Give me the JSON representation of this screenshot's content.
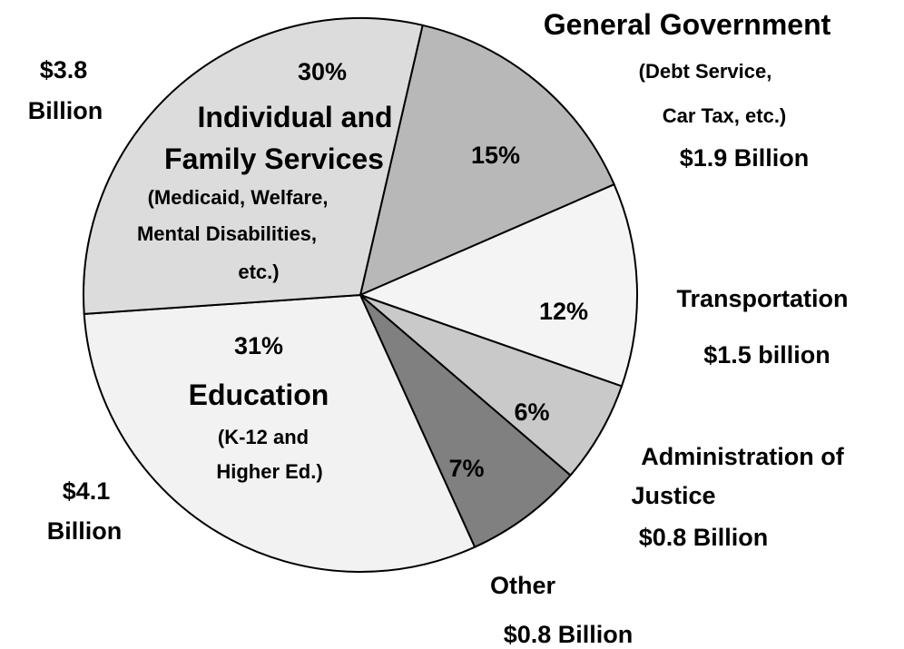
{
  "chart_data": {
    "type": "pie",
    "title": "",
    "slices": [
      {
        "key": "general_government",
        "name": "General Government",
        "sub": [
          "(Debt Service,",
          "Car Tax, etc.)"
        ],
        "percent": 15,
        "percent_label": "15%",
        "amount_label": "$1.9 Billion",
        "color": "#b8b8b8"
      },
      {
        "key": "transportation",
        "name": "Transportation",
        "sub": [],
        "percent": 12,
        "percent_label": "12%",
        "amount_label": "$1.5 billion",
        "color": "#f4f4f4"
      },
      {
        "key": "administration_of_justice",
        "name": "Administration of",
        "name2": "Justice",
        "sub": [],
        "percent": 6,
        "percent_label": "6%",
        "amount_label": "$0.8 Billion",
        "color": "#c9c9c9"
      },
      {
        "key": "other",
        "name": "Other",
        "sub": [],
        "percent": 7,
        "percent_label": "7%",
        "amount_label": "$0.8 Billion",
        "color": "#808080"
      },
      {
        "key": "education",
        "name": "Education",
        "sub": [
          "(K-12 and",
          "Higher Ed.)"
        ],
        "percent": 31,
        "percent_label": "31%",
        "amount_label": [
          "$4.1",
          "Billion"
        ],
        "color": "#f2f2f2"
      },
      {
        "key": "individual_family_services",
        "name": [
          "Individual and",
          "Family Services"
        ],
        "sub": [
          "(Medicaid, Welfare,",
          "Mental Disabilities,",
          "etc.)"
        ],
        "percent": 30,
        "percent_label": "30%",
        "amount_label": [
          "$3.8",
          "Billion"
        ],
        "color": "#dcdcdc"
      }
    ]
  }
}
